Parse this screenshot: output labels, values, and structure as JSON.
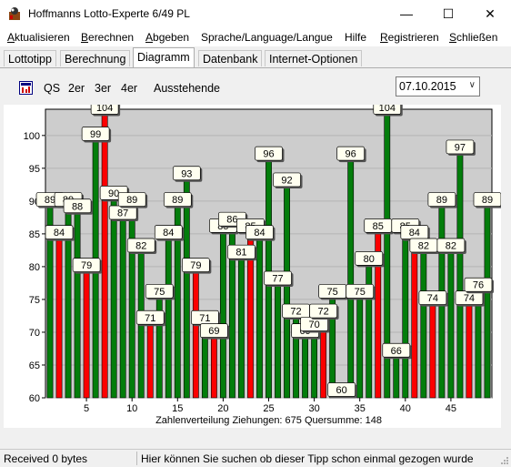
{
  "window": {
    "title": "Hoffmanns Lotto-Experte  6/49 PL",
    "minimize": "—",
    "maximize": "☐",
    "close": "✕"
  },
  "menu": {
    "items": [
      {
        "ul": "A",
        "rest": "ktualisieren"
      },
      {
        "ul": "B",
        "rest": "erechnen"
      },
      {
        "ul": "A",
        "rest": "bgeben"
      },
      {
        "ul": "",
        "rest": "Sprache/Language/Langue"
      },
      {
        "ul": "",
        "rest": "Hilfe"
      },
      {
        "ul": "R",
        "rest": "egistrieren"
      },
      {
        "ul": "S",
        "rest": "chließen"
      }
    ]
  },
  "tabs": [
    "Lottotipp",
    "Berechnung",
    "Diagramm",
    "Datenbank",
    "Internet-Optionen"
  ],
  "toolbar": {
    "items": [
      "QS",
      "2er",
      "3er",
      "4er",
      "Ausstehende"
    ],
    "date": "07.10.2015"
  },
  "colors": {
    "chart_bg": "#cdcdcd",
    "green": "#037d0b",
    "red": "#fc0000",
    "label_bg": "#fffff0"
  },
  "chart_data": {
    "type": "bar",
    "categories": [
      1,
      2,
      3,
      4,
      5,
      6,
      7,
      8,
      9,
      10,
      11,
      12,
      13,
      14,
      15,
      16,
      17,
      18,
      19,
      20,
      21,
      22,
      23,
      24,
      25,
      26,
      27,
      28,
      29,
      30,
      31,
      32,
      33,
      34,
      35,
      36,
      37,
      38,
      39,
      40,
      41,
      42,
      43,
      44,
      45,
      46,
      47,
      48,
      49
    ],
    "values": [
      89,
      84,
      89,
      88,
      79,
      99,
      104,
      90,
      87,
      89,
      82,
      71,
      75,
      84,
      89,
      93,
      79,
      71,
      69,
      85,
      86,
      81,
      85,
      84,
      96,
      77,
      92,
      72,
      69,
      70,
      72,
      75,
      60,
      96,
      75,
      80,
      85,
      104,
      66,
      85,
      84,
      82,
      74,
      89,
      82,
      97,
      74,
      76,
      89
    ],
    "highlighted": [
      2,
      5,
      7,
      12,
      17,
      19,
      23,
      31,
      37,
      41,
      43,
      47
    ],
    "ylim": [
      60,
      104
    ],
    "yticks": [
      60,
      65,
      70,
      75,
      80,
      85,
      90,
      95,
      100
    ],
    "xticks": [
      5,
      10,
      15,
      20,
      25,
      30,
      35,
      40,
      45
    ],
    "xlabel": "Zahlenverteilung   Ziehungen: 675   Quersumme: 148"
  },
  "status": {
    "left": "Received 0 bytes",
    "right": "Hier können Sie suchen ob dieser Tipp schon einmal gezogen wurde"
  }
}
